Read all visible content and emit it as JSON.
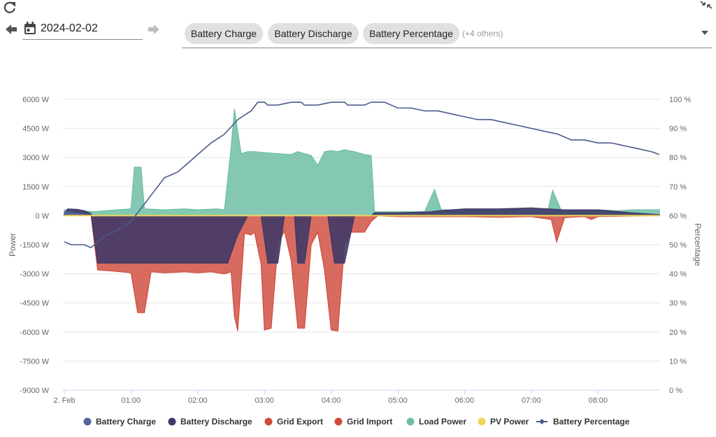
{
  "toolbar": {
    "date_value": "2024-02-02",
    "chips": [
      "Battery Charge",
      "Battery Discharge",
      "Battery Percentage"
    ],
    "others_label": "(+4 others)"
  },
  "colors": {
    "battery_charge": "#57669a",
    "battery_discharge": "#3e3868",
    "grid_export": "#d04a3c",
    "grid_import": "#d04a3c",
    "load_power": "#6fbea6",
    "pv_power": "#f0d55a",
    "battery_percentage": "#4a5a8c"
  },
  "chart_data": {
    "type": "area",
    "y_left": {
      "title": "Power",
      "ylim": [
        -9000,
        6000
      ],
      "ticks": [
        6000,
        4500,
        3000,
        1500,
        0,
        -1500,
        -3000,
        -4500,
        -6000,
        -7500,
        -9000
      ],
      "tick_labels": [
        "6000 W",
        "4500 W",
        "3000 W",
        "1500 W",
        "0 W",
        "-1500 W",
        "-3000 W",
        "-4500 W",
        "-6000 W",
        "-7500 W",
        "-9000 W"
      ]
    },
    "y_right": {
      "title": "Percentage",
      "ylim": [
        0,
        100
      ],
      "ticks": [
        100,
        90,
        80,
        70,
        60,
        50,
        40,
        30,
        20,
        10,
        0
      ],
      "tick_labels": [
        "100 %",
        "90 %",
        "80 %",
        "70 %",
        "60 %",
        "50 %",
        "40 %",
        "30 %",
        "20 %",
        "10 %",
        "0 %"
      ]
    },
    "x_axis": {
      "xlim": [
        0,
        8.92
      ],
      "ticks": [
        0,
        1,
        2,
        3,
        4,
        5,
        6,
        7,
        8
      ],
      "tick_labels": [
        "2. Feb",
        "01:00",
        "02:00",
        "03:00",
        "04:00",
        "05:00",
        "06:00",
        "07:00",
        "08:00"
      ]
    },
    "series": [
      {
        "name": "Battery Charge",
        "axis": "left",
        "kind": "area",
        "points": [
          [
            0.0,
            200
          ],
          [
            0.4,
            0
          ],
          [
            8.92,
            0
          ]
        ]
      },
      {
        "name": "Battery Discharge",
        "axis": "left",
        "kind": "area",
        "points": [
          [
            0.0,
            100
          ],
          [
            0.05,
            350
          ],
          [
            0.2,
            320
          ],
          [
            0.3,
            250
          ],
          [
            0.4,
            100
          ],
          [
            0.5,
            -2450
          ],
          [
            1.0,
            -2450
          ],
          [
            1.5,
            -2450
          ],
          [
            2.0,
            -2450
          ],
          [
            2.45,
            -2450
          ],
          [
            2.6,
            -1000
          ],
          [
            2.75,
            0
          ],
          [
            2.95,
            0
          ],
          [
            3.05,
            -2450
          ],
          [
            3.2,
            -2450
          ],
          [
            3.3,
            0
          ],
          [
            3.45,
            0
          ],
          [
            3.5,
            -2450
          ],
          [
            3.6,
            -2450
          ],
          [
            3.7,
            0
          ],
          [
            3.95,
            0
          ],
          [
            4.05,
            -2450
          ],
          [
            4.2,
            -2450
          ],
          [
            4.35,
            0
          ],
          [
            4.6,
            0
          ],
          [
            4.65,
            150
          ],
          [
            5.0,
            150
          ],
          [
            5.5,
            200
          ],
          [
            5.6,
            250
          ],
          [
            6.0,
            350
          ],
          [
            6.5,
            350
          ],
          [
            7.0,
            400
          ],
          [
            7.5,
            300
          ],
          [
            8.0,
            300
          ],
          [
            8.5,
            150
          ],
          [
            8.92,
            50
          ]
        ]
      },
      {
        "name": "Grid Export",
        "axis": "left",
        "kind": "area",
        "points": [
          [
            0.0,
            0
          ],
          [
            4.6,
            0
          ],
          [
            5.0,
            -50
          ],
          [
            6.0,
            -50
          ],
          [
            6.5,
            -80
          ],
          [
            7.0,
            -50
          ],
          [
            7.3,
            -200
          ],
          [
            7.38,
            -1350
          ],
          [
            7.5,
            -100
          ],
          [
            7.8,
            -50
          ],
          [
            7.9,
            -200
          ],
          [
            8.0,
            -50
          ],
          [
            8.92,
            0
          ]
        ]
      },
      {
        "name": "Grid Import",
        "axis": "left",
        "kind": "area",
        "points": [
          [
            0.0,
            0
          ],
          [
            0.4,
            0
          ],
          [
            0.5,
            -2800
          ],
          [
            0.7,
            -2850
          ],
          [
            1.0,
            -2950
          ],
          [
            1.1,
            -5000
          ],
          [
            1.2,
            -5000
          ],
          [
            1.3,
            -2900
          ],
          [
            1.5,
            -2950
          ],
          [
            1.8,
            -2900
          ],
          [
            2.0,
            -2950
          ],
          [
            2.2,
            -2900
          ],
          [
            2.4,
            -3000
          ],
          [
            2.5,
            -2900
          ],
          [
            2.55,
            -5200
          ],
          [
            2.6,
            -5950
          ],
          [
            2.7,
            -900
          ],
          [
            2.8,
            -1000
          ],
          [
            2.85,
            -850
          ],
          [
            2.95,
            -2500
          ],
          [
            3.0,
            -5900
          ],
          [
            3.1,
            -5800
          ],
          [
            3.2,
            -1500
          ],
          [
            3.3,
            -800
          ],
          [
            3.4,
            -2300
          ],
          [
            3.5,
            -5800
          ],
          [
            3.6,
            -5800
          ],
          [
            3.7,
            -1500
          ],
          [
            3.8,
            -850
          ],
          [
            3.9,
            -2800
          ],
          [
            4.0,
            -5900
          ],
          [
            4.1,
            -5950
          ],
          [
            4.2,
            -1500
          ],
          [
            4.3,
            -850
          ],
          [
            4.5,
            -850
          ],
          [
            4.6,
            -300
          ],
          [
            4.7,
            0
          ],
          [
            8.92,
            0
          ]
        ]
      },
      {
        "name": "Load Power",
        "axis": "left",
        "kind": "area",
        "points": [
          [
            0.0,
            300
          ],
          [
            0.3,
            250
          ],
          [
            0.45,
            200
          ],
          [
            0.6,
            250
          ],
          [
            0.8,
            300
          ],
          [
            1.0,
            350
          ],
          [
            1.05,
            2500
          ],
          [
            1.15,
            2500
          ],
          [
            1.2,
            350
          ],
          [
            1.5,
            300
          ],
          [
            1.8,
            350
          ],
          [
            2.0,
            300
          ],
          [
            2.3,
            350
          ],
          [
            2.4,
            300
          ],
          [
            2.5,
            3500
          ],
          [
            2.55,
            5500
          ],
          [
            2.65,
            3200
          ],
          [
            2.75,
            3300
          ],
          [
            2.85,
            3300
          ],
          [
            3.0,
            3250
          ],
          [
            3.2,
            3200
          ],
          [
            3.4,
            3150
          ],
          [
            3.5,
            3300
          ],
          [
            3.6,
            3200
          ],
          [
            3.7,
            3100
          ],
          [
            3.8,
            2600
          ],
          [
            3.9,
            3300
          ],
          [
            4.0,
            3350
          ],
          [
            4.1,
            3300
          ],
          [
            4.2,
            3400
          ],
          [
            4.35,
            3300
          ],
          [
            4.5,
            3150
          ],
          [
            4.6,
            3100
          ],
          [
            4.65,
            200
          ],
          [
            5.0,
            200
          ],
          [
            5.4,
            200
          ],
          [
            5.55,
            1350
          ],
          [
            5.65,
            300
          ],
          [
            6.0,
            300
          ],
          [
            6.5,
            350
          ],
          [
            7.0,
            300
          ],
          [
            7.25,
            300
          ],
          [
            7.32,
            1300
          ],
          [
            7.45,
            250
          ],
          [
            7.7,
            250
          ],
          [
            8.0,
            300
          ],
          [
            8.3,
            250
          ],
          [
            8.5,
            300
          ],
          [
            8.92,
            300
          ]
        ]
      },
      {
        "name": "PV Power",
        "axis": "left",
        "kind": "area",
        "points": [
          [
            0.0,
            0
          ],
          [
            8.92,
            0
          ]
        ]
      },
      {
        "name": "Battery Percentage",
        "axis": "right",
        "kind": "line",
        "points": [
          [
            0.0,
            51
          ],
          [
            0.1,
            50
          ],
          [
            0.3,
            50
          ],
          [
            0.4,
            49
          ],
          [
            0.5,
            51
          ],
          [
            0.6,
            53
          ],
          [
            0.8,
            55
          ],
          [
            1.0,
            58
          ],
          [
            1.1,
            61
          ],
          [
            1.2,
            64
          ],
          [
            1.3,
            67
          ],
          [
            1.4,
            70
          ],
          [
            1.5,
            73
          ],
          [
            1.7,
            75
          ],
          [
            1.9,
            79
          ],
          [
            2.0,
            81
          ],
          [
            2.2,
            85
          ],
          [
            2.4,
            88
          ],
          [
            2.6,
            93
          ],
          [
            2.8,
            96
          ],
          [
            2.9,
            99
          ],
          [
            3.0,
            99
          ],
          [
            3.05,
            98
          ],
          [
            3.2,
            98
          ],
          [
            3.4,
            99
          ],
          [
            3.55,
            99
          ],
          [
            3.6,
            98
          ],
          [
            3.8,
            98
          ],
          [
            4.0,
            99
          ],
          [
            4.2,
            99
          ],
          [
            4.25,
            98
          ],
          [
            4.5,
            98
          ],
          [
            4.6,
            99
          ],
          [
            4.8,
            99
          ],
          [
            5.0,
            97
          ],
          [
            5.2,
            97
          ],
          [
            5.4,
            96
          ],
          [
            5.6,
            96
          ],
          [
            5.8,
            95
          ],
          [
            6.0,
            94
          ],
          [
            6.2,
            93
          ],
          [
            6.4,
            93
          ],
          [
            6.6,
            92
          ],
          [
            6.8,
            91
          ],
          [
            7.0,
            90
          ],
          [
            7.2,
            89
          ],
          [
            7.4,
            88
          ],
          [
            7.6,
            86
          ],
          [
            7.8,
            86
          ],
          [
            8.0,
            85
          ],
          [
            8.2,
            85
          ],
          [
            8.4,
            84
          ],
          [
            8.6,
            83
          ],
          [
            8.8,
            82
          ],
          [
            8.92,
            81
          ]
        ]
      }
    ],
    "legend": {
      "position": "bottom",
      "items": [
        "Battery Charge",
        "Battery Discharge",
        "Grid Export",
        "Grid Import",
        "Load Power",
        "PV Power",
        "Battery Percentage"
      ]
    }
  }
}
